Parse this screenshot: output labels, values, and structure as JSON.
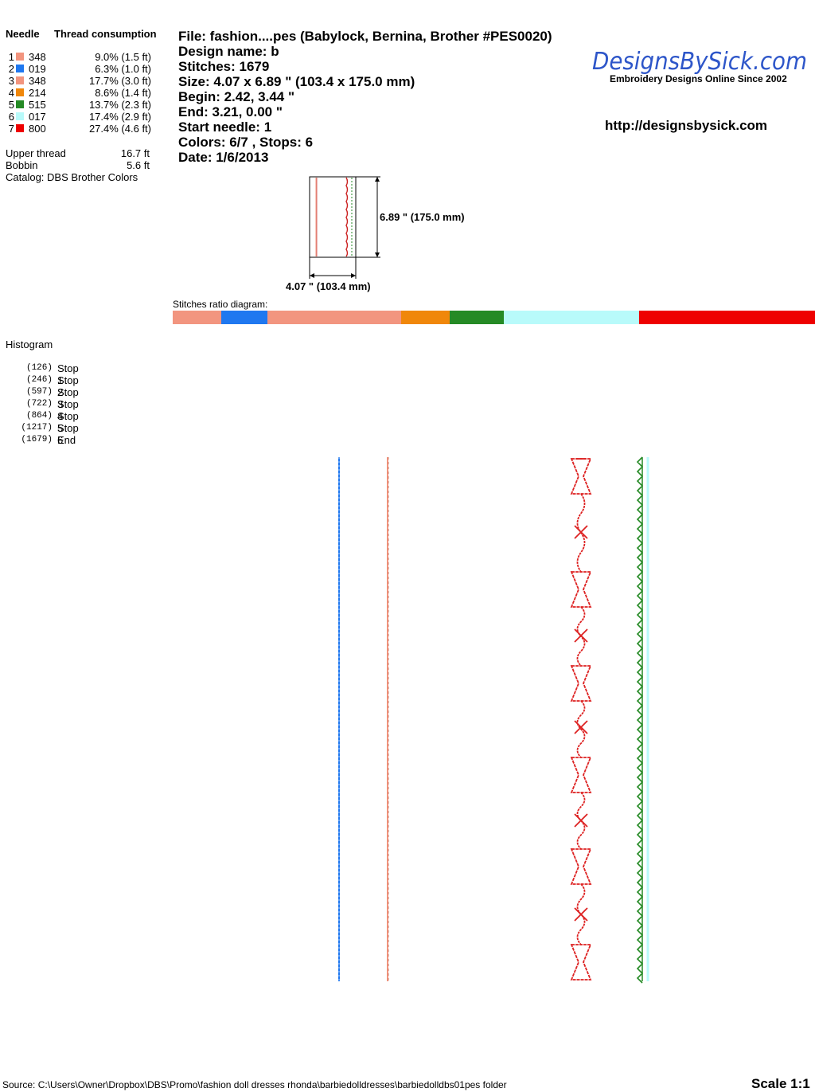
{
  "colors": {
    "c1": "#f2957f",
    "c2": "#1f78f0",
    "c3": "#f2957f",
    "c4": "#f0870a",
    "c5": "#258a25",
    "c6": "#b8fafa",
    "c7": "#ee0000",
    "logo_blue": "#2e56c9"
  },
  "header": {
    "needle_label": "Needle",
    "thread_label": "Thread consumption"
  },
  "needles": [
    {
      "num": "1",
      "code": "348",
      "pct": "9.0% (1.5 ft)"
    },
    {
      "num": "2",
      "code": "019",
      "pct": "6.3% (1.0 ft)"
    },
    {
      "num": "3",
      "code": "348",
      "pct": "17.7% (3.0 ft)"
    },
    {
      "num": "4",
      "code": "214",
      "pct": "8.6% (1.4 ft)"
    },
    {
      "num": "5",
      "code": "515",
      "pct": "13.7% (2.3 ft)"
    },
    {
      "num": "6",
      "code": "017",
      "pct": "17.4% (2.9 ft)"
    },
    {
      "num": "7",
      "code": "800",
      "pct": "27.4% (4.6 ft)"
    }
  ],
  "thread_totals": {
    "upper_label": "Upper thread",
    "upper_value": "16.7 ft",
    "bobbin_label": "Bobbin",
    "bobbin_value": "5.6 ft",
    "catalog": "Catalog: DBS Brother Colors"
  },
  "info": {
    "file": "File: fashion....pes  (Babylock, Bernina, Brother #PES0020)",
    "design_name": "Design name: b",
    "stitches": "Stitches: 1679",
    "size": "Size: 4.07 x 6.89 \" (103.4 x 175.0 mm)",
    "begin": "Begin: 2.42, 3.44 \"",
    "end": "End: 3.21, 0.00 \"",
    "start_needle": "Start needle: 1",
    "colors_stops": "Colors: 6/7 , Stops: 6",
    "date": "Date: 1/6/2013"
  },
  "logo": {
    "name": "DesignsBySick.com",
    "tagline": "Embroidery Designs Online Since 2002",
    "url": "http://designsbysick.com"
  },
  "preview": {
    "height_label": "6.89 \" (175.0 mm)",
    "width_label": "4.07 \" (103.4 mm)"
  },
  "ratio": {
    "label": "Stitches ratio diagram:",
    "segments": [
      0.075,
      0.072,
      0.209,
      0.075,
      0.084,
      0.211,
      0.274
    ]
  },
  "histogram": {
    "title": "Histogram",
    "rows": [
      {
        "count": "(126)",
        "label": "Stop 1"
      },
      {
        "count": "(246)",
        "label": "Stop 2"
      },
      {
        "count": "(597)",
        "label": "Stop 3"
      },
      {
        "count": "(722)",
        "label": "Stop 4"
      },
      {
        "count": "(864)",
        "label": "Stop 5"
      },
      {
        "count": "(1217)",
        "label": "Stop 6"
      },
      {
        "count": "(1679)",
        "label": "End"
      }
    ]
  },
  "footer": {
    "source": "Source: C:\\Users\\Owner\\Dropbox\\DBS\\Promo\\fashion doll dresses  rhonda\\barbiedolldresses\\barbiedolldbs01pes folder",
    "scale": "Scale 1:1"
  }
}
